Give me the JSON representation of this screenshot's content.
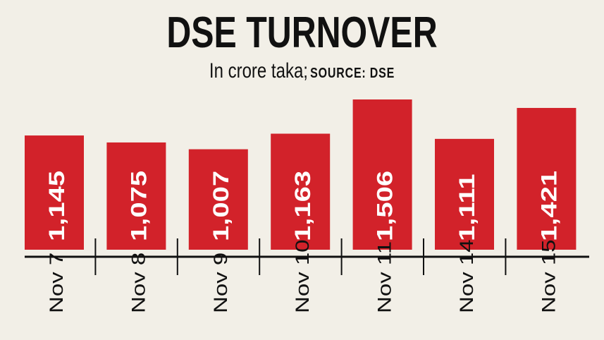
{
  "chart_data": {
    "type": "bar",
    "title": "DSE TURNOVER",
    "subtitle": "In crore taka;",
    "source": "SOURCE: DSE",
    "categories": [
      "Nov 7",
      "Nov 8",
      "Nov 9",
      "Nov 10",
      "Nov 11",
      "Nov 14",
      "Nov 15"
    ],
    "values": [
      1145,
      1075,
      1007,
      1163,
      1506,
      1111,
      1421
    ],
    "value_labels": [
      "1,145",
      "1,075",
      "1,007",
      "1,163",
      "1,506",
      "1,111",
      "1,421"
    ],
    "xlabel": "",
    "ylabel": "",
    "ylim": [
      0,
      1506
    ],
    "grid": false,
    "bar_color": "#d2222a",
    "background": "#f2efe7"
  }
}
